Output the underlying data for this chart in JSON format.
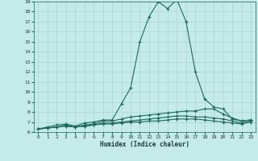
{
  "xlabel": "Humidex (Indice chaleur)",
  "xlim": [
    -0.5,
    23.5
  ],
  "ylim": [
    6,
    19
  ],
  "yticks": [
    6,
    7,
    8,
    9,
    10,
    11,
    12,
    13,
    14,
    15,
    16,
    17,
    18,
    19
  ],
  "xticks": [
    0,
    1,
    2,
    3,
    4,
    5,
    6,
    7,
    8,
    9,
    10,
    11,
    12,
    13,
    14,
    15,
    16,
    17,
    18,
    19,
    20,
    21,
    22,
    23
  ],
  "bg_color": "#c5eaea",
  "line_color": "#1a6b5a",
  "grid_color": "#b0d8d8",
  "curves": [
    {
      "x": [
        0,
        1,
        2,
        3,
        4,
        5,
        6,
        7,
        8,
        9,
        10,
        11,
        12,
        13,
        14,
        15,
        16,
        17,
        18,
        19,
        20,
        21,
        22,
        23
      ],
      "y": [
        6.3,
        6.5,
        6.7,
        6.8,
        6.6,
        6.9,
        7.0,
        7.2,
        7.2,
        8.8,
        10.4,
        15.0,
        17.5,
        19.0,
        18.3,
        19.2,
        17.0,
        12.0,
        9.3,
        8.5,
        8.3,
        7.3,
        7.1,
        7.2
      ]
    },
    {
      "x": [
        0,
        1,
        2,
        3,
        4,
        5,
        6,
        7,
        8,
        9,
        10,
        11,
        12,
        13,
        14,
        15,
        16,
        17,
        18,
        19,
        20,
        21,
        22,
        23
      ],
      "y": [
        6.3,
        6.4,
        6.5,
        6.7,
        6.5,
        6.7,
        6.8,
        7.1,
        7.1,
        7.3,
        7.5,
        7.6,
        7.7,
        7.8,
        7.9,
        8.0,
        8.1,
        8.1,
        8.3,
        8.3,
        7.8,
        7.4,
        7.1,
        7.2
      ]
    },
    {
      "x": [
        0,
        1,
        2,
        3,
        4,
        5,
        6,
        7,
        8,
        9,
        10,
        11,
        12,
        13,
        14,
        15,
        16,
        17,
        18,
        19,
        20,
        21,
        22,
        23
      ],
      "y": [
        6.3,
        6.4,
        6.5,
        6.6,
        6.5,
        6.6,
        6.7,
        6.9,
        6.9,
        7.0,
        7.1,
        7.2,
        7.3,
        7.4,
        7.5,
        7.6,
        7.6,
        7.5,
        7.5,
        7.4,
        7.3,
        7.1,
        6.9,
        7.1
      ]
    },
    {
      "x": [
        0,
        1,
        2,
        3,
        4,
        5,
        6,
        7,
        8,
        9,
        10,
        11,
        12,
        13,
        14,
        15,
        16,
        17,
        18,
        19,
        20,
        21,
        22,
        23
      ],
      "y": [
        6.3,
        6.4,
        6.5,
        6.6,
        6.5,
        6.6,
        6.7,
        6.8,
        6.8,
        6.9,
        7.0,
        7.0,
        7.1,
        7.1,
        7.2,
        7.3,
        7.3,
        7.3,
        7.2,
        7.1,
        7.0,
        6.9,
        6.8,
        7.0
      ]
    }
  ]
}
